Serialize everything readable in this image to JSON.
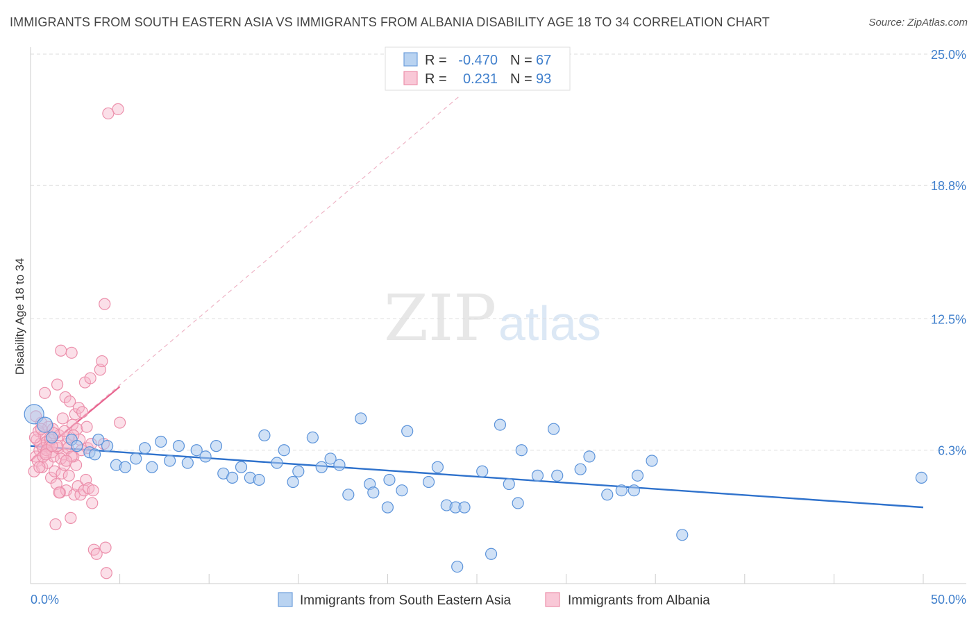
{
  "title": "IMMIGRANTS FROM SOUTH EASTERN ASIA VS IMMIGRANTS FROM ALBANIA DISABILITY AGE 18 TO 34 CORRELATION CHART",
  "source": "Source: ZipAtlas.com",
  "watermark": {
    "zip": "ZIP",
    "atlas": "atlas"
  },
  "colors": {
    "blue": "#4a86d4",
    "blue_fill": "#a9c8ee",
    "pink": "#e8648f",
    "pink_fill": "#f6b7cb"
  },
  "chart_data": {
    "type": "scatter",
    "ylabel": "Disability Age 18 to 34",
    "xlim": [
      0,
      50
    ],
    "ylim": [
      0,
      25
    ],
    "x_tick_labels": [
      "0.0%",
      "50.0%"
    ],
    "y_ticks": [
      6.3,
      12.5,
      18.8,
      25.0
    ],
    "y_tick_labels": [
      "6.3%",
      "12.5%",
      "18.8%",
      "25.0%"
    ],
    "legend": {
      "r_label": "R =",
      "n_label": "N =",
      "rows": [
        {
          "r": "-0.470",
          "n": "67"
        },
        {
          "r": "0.231",
          "n": "93"
        }
      ]
    },
    "series": [
      {
        "name": "Immigrants from South Eastern Asia",
        "trend": {
          "x0": 0.0,
          "y0": 6.5,
          "x1": 50.0,
          "y1": 3.6
        },
        "points": [
          [
            0.2,
            8.0
          ],
          [
            0.8,
            7.5
          ],
          [
            1.2,
            6.9
          ],
          [
            2.3,
            6.8
          ],
          [
            2.6,
            6.5
          ],
          [
            3.3,
            6.2
          ],
          [
            3.8,
            6.8
          ],
          [
            4.3,
            6.5
          ],
          [
            4.8,
            5.6
          ],
          [
            5.3,
            5.5
          ],
          [
            5.9,
            5.9
          ],
          [
            6.4,
            6.4
          ],
          [
            6.8,
            5.5
          ],
          [
            7.3,
            6.7
          ],
          [
            7.8,
            5.8
          ],
          [
            8.3,
            6.5
          ],
          [
            8.8,
            5.7
          ],
          [
            9.3,
            6.3
          ],
          [
            9.8,
            6.0
          ],
          [
            10.4,
            6.5
          ],
          [
            10.8,
            5.2
          ],
          [
            11.3,
            5.0
          ],
          [
            11.8,
            5.5
          ],
          [
            12.3,
            5.0
          ],
          [
            12.8,
            4.9
          ],
          [
            13.1,
            7.0
          ],
          [
            13.8,
            5.7
          ],
          [
            14.2,
            6.3
          ],
          [
            14.7,
            4.8
          ],
          [
            15.0,
            5.3
          ],
          [
            15.8,
            6.9
          ],
          [
            16.3,
            5.5
          ],
          [
            16.8,
            5.9
          ],
          [
            17.3,
            5.6
          ],
          [
            17.8,
            4.2
          ],
          [
            18.5,
            7.8
          ],
          [
            19.0,
            4.7
          ],
          [
            19.2,
            4.3
          ],
          [
            20.0,
            3.6
          ],
          [
            20.1,
            4.9
          ],
          [
            20.8,
            4.4
          ],
          [
            21.1,
            7.2
          ],
          [
            22.3,
            4.8
          ],
          [
            22.8,
            5.5
          ],
          [
            23.3,
            3.7
          ],
          [
            23.8,
            3.6
          ],
          [
            23.9,
            0.8
          ],
          [
            24.3,
            3.6
          ],
          [
            25.3,
            5.3
          ],
          [
            25.8,
            1.4
          ],
          [
            26.3,
            7.5
          ],
          [
            26.8,
            4.7
          ],
          [
            27.3,
            3.8
          ],
          [
            27.5,
            6.3
          ],
          [
            28.4,
            5.1
          ],
          [
            29.3,
            7.3
          ],
          [
            29.5,
            5.1
          ],
          [
            30.8,
            5.4
          ],
          [
            31.3,
            6.0
          ],
          [
            32.3,
            4.2
          ],
          [
            33.1,
            4.4
          ],
          [
            33.8,
            4.4
          ],
          [
            34.0,
            5.1
          ],
          [
            34.8,
            5.8
          ],
          [
            36.5,
            2.3
          ],
          [
            49.9,
            5.0
          ],
          [
            3.6,
            6.1
          ]
        ]
      },
      {
        "name": "Immigrants from Albania",
        "trend": {
          "x0": 0.0,
          "y0": 5.8,
          "x1": 5.0,
          "y1": 9.3
        },
        "trend_extended": {
          "x0": 0.0,
          "y0": 5.8,
          "x1": 24.0,
          "y1": 23.0
        },
        "points": [
          [
            0.2,
            5.3
          ],
          [
            0.3,
            6.0
          ],
          [
            0.35,
            6.8
          ],
          [
            0.4,
            5.8
          ],
          [
            0.45,
            7.2
          ],
          [
            0.5,
            6.3
          ],
          [
            0.55,
            6.6
          ],
          [
            0.6,
            7.6
          ],
          [
            0.65,
            5.5
          ],
          [
            0.7,
            6.4
          ],
          [
            0.75,
            7.0
          ],
          [
            0.8,
            9.0
          ],
          [
            0.85,
            6.2
          ],
          [
            0.9,
            6.7
          ],
          [
            0.95,
            5.7
          ],
          [
            1.0,
            7.4
          ],
          [
            1.05,
            6.5
          ],
          [
            1.1,
            6.9
          ],
          [
            1.15,
            5.0
          ],
          [
            1.2,
            6.2
          ],
          [
            1.25,
            7.3
          ],
          [
            1.3,
            6.0
          ],
          [
            1.35,
            5.3
          ],
          [
            1.4,
            2.8
          ],
          [
            1.45,
            4.7
          ],
          [
            1.5,
            9.4
          ],
          [
            1.55,
            6.4
          ],
          [
            1.6,
            7.0
          ],
          [
            1.65,
            4.3
          ],
          [
            1.7,
            11.0
          ],
          [
            1.75,
            5.2
          ],
          [
            1.8,
            7.8
          ],
          [
            1.85,
            6.1
          ],
          [
            1.9,
            5.6
          ],
          [
            1.95,
            8.8
          ],
          [
            2.0,
            4.4
          ],
          [
            2.05,
            6.6
          ],
          [
            2.1,
            6.9
          ],
          [
            2.15,
            5.1
          ],
          [
            2.2,
            8.6
          ],
          [
            2.25,
            3.1
          ],
          [
            2.3,
            10.9
          ],
          [
            2.35,
            7.5
          ],
          [
            2.4,
            6.0
          ],
          [
            2.45,
            4.2
          ],
          [
            2.5,
            8.0
          ],
          [
            2.55,
            5.6
          ],
          [
            2.6,
            7.3
          ],
          [
            2.65,
            4.6
          ],
          [
            2.7,
            8.3
          ],
          [
            2.75,
            6.8
          ],
          [
            2.8,
            4.2
          ],
          [
            2.85,
            6.3
          ],
          [
            2.9,
            8.1
          ],
          [
            3.0,
            4.4
          ],
          [
            3.05,
            9.5
          ],
          [
            3.1,
            4.9
          ],
          [
            3.15,
            7.4
          ],
          [
            3.2,
            6.4
          ],
          [
            3.25,
            4.5
          ],
          [
            3.35,
            9.7
          ],
          [
            3.4,
            6.6
          ],
          [
            3.45,
            3.8
          ],
          [
            3.5,
            4.4
          ],
          [
            3.55,
            1.6
          ],
          [
            3.7,
            1.4
          ],
          [
            3.9,
            10.1
          ],
          [
            4.0,
            10.5
          ],
          [
            4.1,
            6.6
          ],
          [
            4.15,
            13.2
          ],
          [
            4.2,
            1.7
          ],
          [
            4.25,
            0.5
          ],
          [
            4.35,
            22.2
          ],
          [
            4.9,
            22.4
          ],
          [
            5.0,
            7.6
          ],
          [
            0.3,
            7.9
          ],
          [
            0.5,
            5.5
          ],
          [
            0.7,
            6.0
          ],
          [
            0.9,
            6.3
          ],
          [
            1.1,
            6.8
          ],
          [
            1.3,
            7.1
          ],
          [
            1.5,
            6.5
          ],
          [
            1.7,
            5.9
          ],
          [
            1.9,
            7.2
          ],
          [
            2.1,
            6.4
          ],
          [
            2.3,
            6.0
          ],
          [
            0.25,
            6.9
          ],
          [
            0.6,
            7.3
          ],
          [
            0.85,
            6.1
          ],
          [
            1.2,
            6.5
          ],
          [
            1.6,
            4.3
          ],
          [
            2.0,
            5.8
          ],
          [
            2.4,
            7.0
          ]
        ]
      }
    ],
    "legend_position": "top-center",
    "bottom_legend": [
      "Immigrants from South Eastern Asia",
      "Immigrants from Albania"
    ]
  }
}
